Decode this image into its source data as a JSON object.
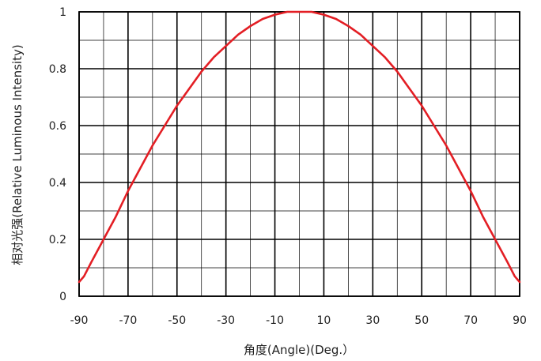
{
  "chart_data": {
    "type": "line",
    "title": "",
    "xlabel": "角度(Angle)(Deg.）",
    "ylabel": "相对光强(Relative Luminous Intensity)",
    "xlim": [
      -90,
      90
    ],
    "ylim": [
      0,
      1
    ],
    "xticks": [
      -90,
      -70,
      -50,
      -30,
      -10,
      10,
      30,
      50,
      70,
      90
    ],
    "yticks": [
      0,
      0.2,
      0.4,
      0.6,
      0.8,
      1
    ],
    "ytick_labels": [
      "0",
      "0.2",
      "0.4",
      "0.6",
      "0.8",
      "1"
    ],
    "grid": true,
    "legend": "none",
    "colors": {
      "line": "#e31e24",
      "grid": "#000000",
      "text": "#222222",
      "background": "#ffffff"
    },
    "series": [
      {
        "x": [
          -90,
          -88,
          -85,
          -80,
          -75,
          -70,
          -65,
          -60,
          -55,
          -50,
          -45,
          -40,
          -35,
          -30,
          -25,
          -20,
          -15,
          -10,
          -5,
          0,
          5,
          10,
          15,
          20,
          25,
          30,
          35,
          40,
          45,
          50,
          55,
          60,
          65,
          70,
          75,
          80,
          85,
          88,
          90
        ],
        "y": [
          0.05,
          0.07,
          0.12,
          0.2,
          0.28,
          0.37,
          0.45,
          0.53,
          0.6,
          0.67,
          0.73,
          0.79,
          0.84,
          0.88,
          0.92,
          0.95,
          0.975,
          0.99,
          1.0,
          1.0,
          1.0,
          0.99,
          0.975,
          0.95,
          0.92,
          0.88,
          0.84,
          0.79,
          0.73,
          0.67,
          0.6,
          0.53,
          0.45,
          0.37,
          0.28,
          0.2,
          0.12,
          0.07,
          0.05
        ]
      }
    ]
  }
}
